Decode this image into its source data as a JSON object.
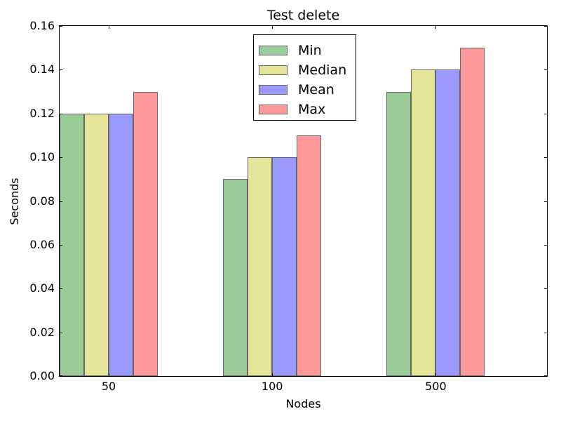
{
  "chart_data": {
    "type": "bar",
    "title": "Test delete",
    "xlabel": "Nodes",
    "ylabel": "Seconds",
    "categories": [
      "50",
      "100",
      "500"
    ],
    "series": [
      {
        "name": "Min",
        "color": "#99CC99",
        "values": [
          0.12,
          0.09,
          0.13
        ]
      },
      {
        "name": "Median",
        "color": "#E5E599",
        "values": [
          0.12,
          0.1,
          0.14
        ]
      },
      {
        "name": "Mean",
        "color": "#9999FF",
        "values": [
          0.12,
          0.1,
          0.14
        ]
      },
      {
        "name": "Max",
        "color": "#FF9999",
        "values": [
          0.13,
          0.11,
          0.15
        ]
      }
    ],
    "edge_color": "#666666",
    "spine_color": "#000000",
    "background_color": "#ffffff",
    "ylim": [
      0,
      0.16
    ],
    "ytick_labels": [
      "0.00",
      "0.02",
      "0.04",
      "0.06",
      "0.08",
      "0.10",
      "0.12",
      "0.14",
      "0.16"
    ],
    "grid": false,
    "legend": {
      "position": "upper center",
      "entries": [
        "Min",
        "Median",
        "Mean",
        "Max"
      ]
    }
  }
}
